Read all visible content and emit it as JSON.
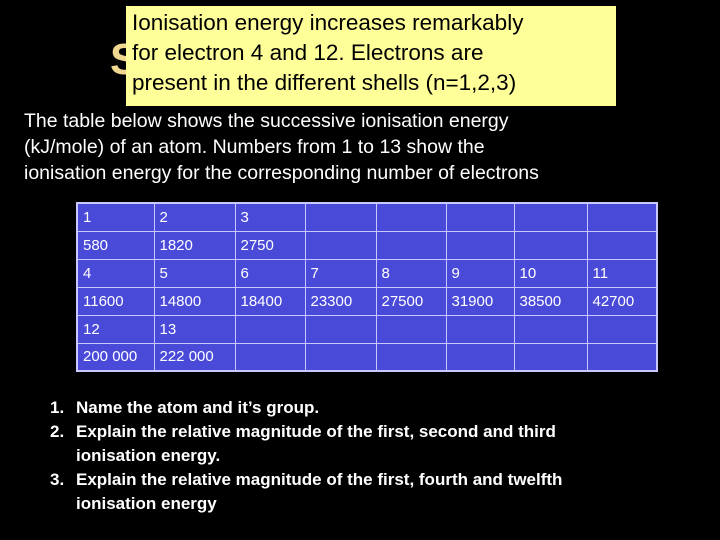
{
  "slide": {
    "ghost_title_fragment": "S",
    "callout_lines": [
      "Ionisation energy increases remarkably",
      "for electron 4 and 12. Electrons are",
      "present in the different shells (n=1,2,3)"
    ],
    "intro_lines": [
      "The table below shows the successive ionisation energy",
      "(kJ/mole) of an atom. Numbers from 1 to 13 show the",
      "ionisation energy for the corresponding number of electrons"
    ],
    "table": {
      "rows": [
        [
          "1",
          "2",
          "3",
          "",
          "",
          "",
          "",
          ""
        ],
        [
          "580",
          "1820",
          "2750",
          "",
          "",
          "",
          "",
          ""
        ],
        [
          "4",
          "5",
          "6",
          "7",
          "8",
          "9",
          "10",
          "11"
        ],
        [
          "11600",
          "14800",
          "18400",
          "23300",
          "27500",
          "31900",
          "38500",
          "42700"
        ],
        [
          "12",
          "13",
          "",
          "",
          "",
          "",
          "",
          ""
        ],
        [
          "200 000",
          "222 000",
          "",
          "",
          "",
          "",
          "",
          ""
        ]
      ]
    },
    "questions": [
      {
        "num": "1.",
        "lines": [
          "Name the atom and it’s group."
        ]
      },
      {
        "num": "2.",
        "lines": [
          "Explain the relative magnitude of the first, second and third",
          "ionisation energy."
        ]
      },
      {
        "num": "3.",
        "lines": [
          "Explain the relative magnitude of the first, fourth and twelfth",
          "ionisation energy"
        ]
      }
    ],
    "colors": {
      "background": "#000000",
      "callout": "#ffff99",
      "table_fill": "#4a4ad8",
      "table_border": "#c8c8ff"
    }
  }
}
